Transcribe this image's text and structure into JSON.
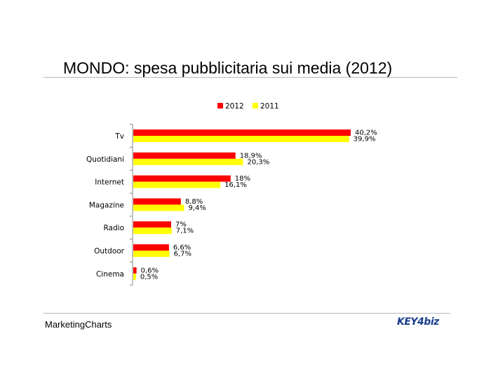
{
  "header": {
    "title": "MONDO: spesa pubblicitaria sui media (2012)"
  },
  "footer": {
    "source": "MarketingCharts",
    "logo_text": "KEY4biz"
  },
  "colors": {
    "series_2012": "#ff0000",
    "series_2011": "#ffff00"
  },
  "chart_data": {
    "type": "bar",
    "orientation": "horizontal",
    "title": "",
    "xlabel": "",
    "ylabel": "",
    "categories": [
      "Tv",
      "Quotidiani",
      "Internet",
      "Magazine",
      "Radio",
      "Outdoor",
      "Cinema"
    ],
    "series": [
      {
        "name": "2012",
        "color": "#ff0000",
        "values": [
          40.2,
          18.9,
          18.0,
          8.8,
          7.0,
          6.6,
          0.6
        ],
        "labels": [
          "40,2%",
          "18,9%",
          "18%",
          "8,8%",
          "7%",
          "6,6%",
          "0,6%"
        ]
      },
      {
        "name": "2011",
        "color": "#ffff00",
        "values": [
          39.9,
          20.3,
          16.1,
          9.4,
          7.1,
          6.7,
          0.5
        ],
        "labels": [
          "39,9%",
          "20,3%",
          "16,1%",
          "9,4%",
          "7,1%",
          "6,7%",
          "0,5%"
        ]
      }
    ],
    "xlim": [
      0,
      40.2
    ],
    "grid": false,
    "legend": "top-center"
  }
}
